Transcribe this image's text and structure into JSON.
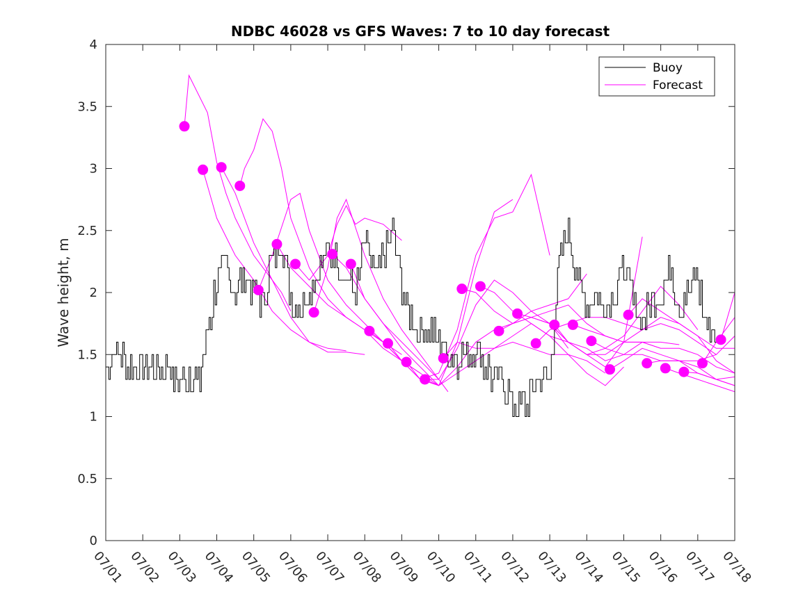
{
  "chart_data": {
    "type": "line",
    "title": "NDBC 46028 vs GFS Waves: 7 to 10 day forecast",
    "xlabel": "",
    "ylabel": "Wave height, m",
    "xlim": [
      "07/01",
      "07/18"
    ],
    "ylim": [
      0,
      4
    ],
    "x_tick_labels": [
      "07/01",
      "07/02",
      "07/03",
      "07/04",
      "07/05",
      "07/06",
      "07/07",
      "07/08",
      "07/09",
      "07/10",
      "07/11",
      "07/12",
      "07/13",
      "07/14",
      "07/15",
      "07/16",
      "07/17",
      "07/18"
    ],
    "y_ticks": [
      0,
      0.5,
      1,
      1.5,
      2,
      2.5,
      3,
      3.5,
      4
    ],
    "y_tick_labels": [
      "0",
      "0.5",
      "1",
      "1.5",
      "2",
      "2.5",
      "3",
      "3.5",
      "4"
    ],
    "grid": false,
    "legend": {
      "placement": "top-right",
      "entries": [
        "Buoy",
        "Forecast"
      ]
    },
    "colors": {
      "buoy": "#000000",
      "forecast": "#ff00ff"
    },
    "buoy": {
      "name": "Buoy",
      "x": [
        "07/01 00:00",
        "07/01 06:00",
        "07/01 12:00",
        "07/01 18:00",
        "07/02 00:00",
        "07/02 06:00",
        "07/02 12:00",
        "07/02 18:00",
        "07/03 00:00",
        "07/03 06:00",
        "07/03 12:00",
        "07/03 18:00",
        "07/04 00:00",
        "07/04 06:00",
        "07/04 12:00",
        "07/04 18:00",
        "07/05 00:00",
        "07/05 06:00",
        "07/05 12:00",
        "07/05 18:00",
        "07/06 00:00",
        "07/06 06:00",
        "07/06 12:00",
        "07/06 18:00",
        "07/07 00:00",
        "07/07 06:00",
        "07/07 12:00",
        "07/07 18:00",
        "07/08 00:00",
        "07/08 06:00",
        "07/08 12:00",
        "07/08 18:00",
        "07/09 00:00",
        "07/09 06:00",
        "07/09 12:00",
        "07/09 18:00",
        "07/10 00:00",
        "07/10 06:00",
        "07/10 12:00",
        "07/10 18:00",
        "07/11 00:00",
        "07/11 06:00",
        "07/11 12:00",
        "07/11 18:00",
        "07/12 00:00",
        "07/12 06:00",
        "07/12 12:00",
        "07/12 18:00",
        "07/13 00:00",
        "07/13 06:00",
        "07/13 12:00",
        "07/13 18:00",
        "07/14 00:00",
        "07/14 06:00",
        "07/14 12:00",
        "07/14 18:00",
        "07/15 00:00",
        "07/15 06:00",
        "07/15 12:00",
        "07/15 18:00",
        "07/16 00:00",
        "07/16 06:00",
        "07/16 12:00",
        "07/16 18:00",
        "07/17 00:00",
        "07/17 06:00",
        "07/17 12:00"
      ],
      "y": [
        1.4,
        1.55,
        1.45,
        1.4,
        1.45,
        1.35,
        1.4,
        1.35,
        1.3,
        1.35,
        1.25,
        1.7,
        2.1,
        2.2,
        2.0,
        2.1,
        2.0,
        1.9,
        2.3,
        2.4,
        1.95,
        1.9,
        2.0,
        2.15,
        2.3,
        2.25,
        2.1,
        2.0,
        2.4,
        2.1,
        2.3,
        2.5,
        2.0,
        1.8,
        1.65,
        1.7,
        1.6,
        1.5,
        1.45,
        1.5,
        1.55,
        1.4,
        1.3,
        1.25,
        1.1,
        1.05,
        1.2,
        1.3,
        1.3,
        2.2,
        2.5,
        2.1,
        1.9,
        2.0,
        1.85,
        2.0,
        2.2,
        1.9,
        1.8,
        1.9,
        2.0,
        2.2,
        1.9,
        2.0,
        2.1,
        1.7,
        1.75
      ]
    },
    "forecast_runs": [
      {
        "x": [
          "07/03 03:00",
          "07/03 06:00",
          "07/03 12:00",
          "07/03 18:00",
          "07/04 00:00",
          "07/04 06:00",
          "07/04 12:00",
          "07/04 18:00",
          "07/05 00:00",
          "07/05 06:00",
          "07/05 12:00",
          "07/05 18:00",
          "07/06 00:00"
        ],
        "y": [
          3.34,
          3.75,
          3.6,
          3.45,
          3.05,
          2.8,
          2.6,
          2.45,
          2.3,
          2.2,
          2.1,
          2.0,
          1.85
        ]
      },
      {
        "x": [
          "07/03 15:00",
          "07/04 00:00",
          "07/04 12:00",
          "07/05 00:00",
          "07/05 12:00",
          "07/06 00:00",
          "07/06 12:00",
          "07/07 00:00",
          "07/07 12:00"
        ],
        "y": [
          2.99,
          2.6,
          2.3,
          2.1,
          1.85,
          1.7,
          1.6,
          1.55,
          1.53
        ]
      },
      {
        "x": [
          "07/04 03:00",
          "07/04 12:00",
          "07/05 00:00",
          "07/05 12:00",
          "07/06 00:00",
          "07/06 12:00",
          "07/07 00:00",
          "07/07 12:00",
          "07/08 00:00"
        ],
        "y": [
          3.01,
          2.8,
          2.4,
          2.1,
          1.8,
          1.6,
          1.52,
          1.52,
          1.5
        ]
      },
      {
        "x": [
          "07/04 15:00",
          "07/04 18:00",
          "07/05 00:00",
          "07/05 06:00",
          "07/05 12:00",
          "07/05 18:00",
          "07/06 00:00",
          "07/06 12:00",
          "07/07 00:00",
          "07/07 12:00",
          "07/08 00:00",
          "07/08 12:00",
          "07/09 00:00"
        ],
        "y": [
          2.86,
          3.0,
          3.15,
          3.4,
          3.3,
          3.0,
          2.6,
          2.2,
          1.95,
          1.8,
          1.7,
          1.6,
          1.5
        ]
      },
      {
        "x": [
          "07/05 03:00",
          "07/05 12:00",
          "07/06 00:00",
          "07/06 06:00",
          "07/06 12:00",
          "07/07 00:00",
          "07/07 12:00",
          "07/08 00:00",
          "07/08 12:00",
          "07/09 00:00",
          "07/09 12:00"
        ],
        "y": [
          2.02,
          2.3,
          2.75,
          2.8,
          2.5,
          2.1,
          1.9,
          1.75,
          1.6,
          1.45,
          1.35
        ]
      },
      {
        "x": [
          "07/05 15:00",
          "07/06 00:00",
          "07/06 12:00",
          "07/07 00:00",
          "07/07 12:00",
          "07/08 00:00",
          "07/08 12:00",
          "07/09 00:00",
          "07/09 12:00",
          "07/10 00:00"
        ],
        "y": [
          2.39,
          2.2,
          2.05,
          1.9,
          1.8,
          1.7,
          1.55,
          1.45,
          1.35,
          1.25
        ]
      },
      {
        "x": [
          "07/06 03:00",
          "07/06 12:00",
          "07/07 00:00",
          "07/07 06:00",
          "07/07 12:00",
          "07/07 18:00",
          "07/08 00:00",
          "07/08 12:00",
          "07/09 00:00"
        ],
        "y": [
          2.23,
          2.1,
          2.3,
          2.55,
          2.7,
          2.55,
          2.6,
          2.55,
          2.42
        ]
      },
      {
        "x": [
          "07/06 15:00",
          "07/07 00:00",
          "07/07 06:00",
          "07/07 12:00",
          "07/08 00:00",
          "07/08 12:00",
          "07/09 00:00",
          "07/09 12:00",
          "07/10 00:00"
        ],
        "y": [
          1.84,
          2.2,
          2.6,
          2.75,
          2.3,
          1.95,
          1.7,
          1.5,
          1.3
        ]
      },
      {
        "x": [
          "07/07 03:00",
          "07/07 12:00",
          "07/08 00:00",
          "07/08 12:00",
          "07/09 00:00",
          "07/09 12:00",
          "07/10 00:00",
          "07/10 06:00"
        ],
        "y": [
          2.31,
          2.2,
          1.95,
          1.75,
          1.6,
          1.45,
          1.3,
          1.2
        ]
      },
      {
        "x": [
          "07/07 15:00",
          "07/08 00:00",
          "07/08 12:00",
          "07/09 00:00",
          "07/09 12:00",
          "07/10 00:00",
          "07/10 12:00",
          "07/11 00:00",
          "07/11 12:00",
          "07/12 00:00"
        ],
        "y": [
          2.23,
          1.95,
          1.75,
          1.55,
          1.4,
          1.25,
          1.6,
          2.2,
          2.65,
          2.75
        ]
      },
      {
        "x": [
          "07/08 03:00",
          "07/08 12:00",
          "07/09 00:00",
          "07/09 12:00",
          "07/10 00:00",
          "07/10 12:00",
          "07/11 00:00",
          "07/11 12:00",
          "07/12 00:00",
          "07/12 12:00",
          "07/13 00:00"
        ],
        "y": [
          1.69,
          1.6,
          1.45,
          1.3,
          1.35,
          1.7,
          2.3,
          2.6,
          2.65,
          2.95,
          2.3
        ]
      },
      {
        "x": [
          "07/08 15:00",
          "07/09 00:00",
          "07/09 12:00",
          "07/10 00:00",
          "07/10 12:00",
          "07/11 00:00",
          "07/11 12:00",
          "07/12 00:00",
          "07/12 12:00",
          "07/13 00:00",
          "07/13 12:00"
        ],
        "y": [
          1.59,
          1.45,
          1.3,
          1.3,
          1.55,
          1.9,
          2.1,
          2.0,
          1.85,
          1.75,
          1.55
        ]
      },
      {
        "x": [
          "07/09 03:00",
          "07/09 12:00",
          "07/10 00:00",
          "07/10 12:00",
          "07/11 00:00",
          "07/11 12:00",
          "07/12 00:00",
          "07/12 12:00",
          "07/13 00:00",
          "07/13 12:00",
          "07/14 00:00"
        ],
        "y": [
          1.44,
          1.3,
          1.25,
          1.4,
          1.6,
          1.7,
          1.75,
          1.85,
          1.9,
          1.95,
          2.15
        ]
      },
      {
        "x": [
          "07/09 15:00",
          "07/10 00:00",
          "07/10 12:00",
          "07/11 00:00",
          "07/11 12:00",
          "07/12 00:00",
          "07/12 12:00",
          "07/13 00:00",
          "07/13 12:00",
          "07/14 00:00",
          "07/14 12:00"
        ],
        "y": [
          1.3,
          1.25,
          1.35,
          1.45,
          1.55,
          1.6,
          1.55,
          1.5,
          1.5,
          1.45,
          1.35
        ]
      },
      {
        "x": [
          "07/10 03:00",
          "07/10 12:00",
          "07/11 00:00",
          "07/11 12:00",
          "07/12 00:00",
          "07/12 12:00",
          "07/13 00:00",
          "07/13 12:00",
          "07/14 00:00",
          "07/14 12:00",
          "07/15 00:00"
        ],
        "y": [
          1.47,
          1.6,
          1.55,
          1.55,
          1.65,
          1.75,
          1.65,
          1.5,
          1.35,
          1.25,
          1.4
        ]
      },
      {
        "x": [
          "07/10 15:00",
          "07/11 00:00",
          "07/11 12:00",
          "07/12 00:00",
          "07/12 12:00",
          "07/13 00:00",
          "07/13 12:00",
          "07/14 00:00",
          "07/14 12:00",
          "07/15 00:00",
          "07/15 12:00"
        ],
        "y": [
          2.03,
          2.0,
          1.85,
          1.75,
          1.8,
          1.75,
          1.6,
          1.5,
          1.4,
          1.6,
          2.45
        ]
      },
      {
        "x": [
          "07/11 03:00",
          "07/11 12:00",
          "07/12 00:00",
          "07/12 12:00",
          "07/13 00:00",
          "07/13 12:00",
          "07/14 00:00",
          "07/14 12:00",
          "07/15 00:00",
          "07/15 12:00",
          "07/16 00:00"
        ],
        "y": [
          2.05,
          2.0,
          1.85,
          1.75,
          1.65,
          1.6,
          1.55,
          1.45,
          1.5,
          1.6,
          1.55
        ]
      },
      {
        "x": [
          "07/11 15:00",
          "07/12 00:00",
          "07/12 12:00",
          "07/13 00:00",
          "07/13 12:00",
          "07/14 00:00",
          "07/14 12:00",
          "07/15 00:00",
          "07/15 12:00",
          "07/16 00:00",
          "07/16 12:00"
        ],
        "y": [
          1.69,
          1.75,
          1.8,
          1.85,
          1.9,
          1.75,
          1.65,
          1.6,
          1.6,
          1.6,
          1.58
        ]
      },
      {
        "x": [
          "07/12 03:00",
          "07/12 12:00",
          "07/13 00:00",
          "07/13 12:00",
          "07/14 00:00",
          "07/14 12:00",
          "07/15 00:00",
          "07/15 12:00",
          "07/16 00:00",
          "07/16 12:00",
          "07/17 00:00"
        ],
        "y": [
          1.83,
          1.8,
          1.75,
          1.6,
          1.5,
          1.55,
          1.65,
          1.85,
          2.05,
          1.9,
          1.7
        ]
      },
      {
        "x": [
          "07/12 15:00",
          "07/13 00:00",
          "07/13 12:00",
          "07/14 00:00",
          "07/14 12:00",
          "07/15 00:00",
          "07/15 12:00",
          "07/16 00:00",
          "07/16 12:00",
          "07/17 00:00",
          "07/17 12:00"
        ],
        "y": [
          1.59,
          1.7,
          1.75,
          1.8,
          1.8,
          1.75,
          1.7,
          1.75,
          1.7,
          1.6,
          1.5
        ]
      },
      {
        "x": [
          "07/13 03:00",
          "07/13 12:00",
          "07/14 00:00",
          "07/14 12:00",
          "07/15 00:00",
          "07/15 12:00",
          "07/16 00:00",
          "07/16 12:00",
          "07/17 00:00",
          "07/17 12:00",
          "07/18 00:00"
        ],
        "y": [
          1.74,
          1.6,
          1.5,
          1.5,
          1.6,
          1.7,
          1.8,
          1.75,
          1.65,
          1.45,
          1.35
        ]
      },
      {
        "x": [
          "07/13 15:00",
          "07/14 00:00",
          "07/14 12:00",
          "07/15 00:00",
          "07/15 12:00",
          "07/16 00:00",
          "07/16 12:00",
          "07/17 00:00",
          "07/17 12:00",
          "07/18 00:00"
        ],
        "y": [
          1.74,
          1.7,
          1.65,
          1.6,
          1.6,
          1.55,
          1.55,
          1.5,
          1.4,
          1.35
        ]
      },
      {
        "x": [
          "07/14 03:00",
          "07/14 12:00",
          "07/15 00:00",
          "07/15 12:00",
          "07/16 00:00",
          "07/16 12:00",
          "07/17 00:00",
          "07/17 12:00",
          "07/18 00:00"
        ],
        "y": [
          1.61,
          1.55,
          1.5,
          1.5,
          1.45,
          1.45,
          1.4,
          1.3,
          1.25
        ]
      },
      {
        "x": [
          "07/14 15:00",
          "07/15 00:00",
          "07/15 12:00",
          "07/16 00:00",
          "07/16 12:00",
          "07/17 00:00",
          "07/17 12:00",
          "07/18 00:00"
        ],
        "y": [
          1.38,
          1.45,
          1.55,
          1.5,
          1.45,
          1.35,
          1.3,
          1.32
        ]
      },
      {
        "x": [
          "07/15 03:00",
          "07/15 12:00",
          "07/16 00:00",
          "07/16 12:00",
          "07/17 00:00",
          "07/17 12:00",
          "07/18 00:00"
        ],
        "y": [
          1.82,
          1.95,
          1.85,
          1.75,
          1.65,
          1.55,
          1.55
        ]
      },
      {
        "x": [
          "07/15 15:00",
          "07/16 00:00",
          "07/16 12:00",
          "07/17 00:00",
          "07/17 12:00",
          "07/18 00:00"
        ],
        "y": [
          1.43,
          1.45,
          1.45,
          1.45,
          1.5,
          1.65
        ]
      },
      {
        "x": [
          "07/16 03:00",
          "07/16 12:00",
          "07/17 00:00",
          "07/17 12:00",
          "07/18 00:00"
        ],
        "y": [
          1.39,
          1.35,
          1.3,
          1.25,
          1.2
        ]
      },
      {
        "x": [
          "07/16 15:00",
          "07/17 00:00",
          "07/17 12:00",
          "07/18 00:00"
        ],
        "y": [
          1.36,
          1.35,
          1.3,
          1.25
        ]
      },
      {
        "x": [
          "07/17 03:00",
          "07/17 12:00",
          "07/18 00:00"
        ],
        "y": [
          1.43,
          1.6,
          1.8
        ]
      },
      {
        "x": [
          "07/17 15:00",
          "07/18 00:00"
        ],
        "y": [
          1.62,
          2.0
        ]
      }
    ],
    "forecast_markers": {
      "x": [
        "07/03 03:00",
        "07/03 15:00",
        "07/04 03:00",
        "07/04 15:00",
        "07/05 03:00",
        "07/05 15:00",
        "07/06 03:00",
        "07/06 15:00",
        "07/07 03:00",
        "07/07 15:00",
        "07/08 03:00",
        "07/08 15:00",
        "07/09 03:00",
        "07/09 15:00",
        "07/10 03:00",
        "07/10 15:00",
        "07/11 03:00",
        "07/11 15:00",
        "07/12 03:00",
        "07/12 15:00",
        "07/13 03:00",
        "07/13 15:00",
        "07/14 03:00",
        "07/14 15:00",
        "07/15 03:00",
        "07/15 15:00",
        "07/16 03:00",
        "07/16 15:00",
        "07/17 03:00",
        "07/17 15:00"
      ],
      "y": [
        3.34,
        2.99,
        3.01,
        2.86,
        2.02,
        2.39,
        2.23,
        1.84,
        2.31,
        2.23,
        1.69,
        1.59,
        1.44,
        1.3,
        1.47,
        2.03,
        2.05,
        1.69,
        1.83,
        1.59,
        1.74,
        1.74,
        1.61,
        1.38,
        1.82,
        1.43,
        1.39,
        1.36,
        1.43,
        1.62
      ]
    }
  }
}
